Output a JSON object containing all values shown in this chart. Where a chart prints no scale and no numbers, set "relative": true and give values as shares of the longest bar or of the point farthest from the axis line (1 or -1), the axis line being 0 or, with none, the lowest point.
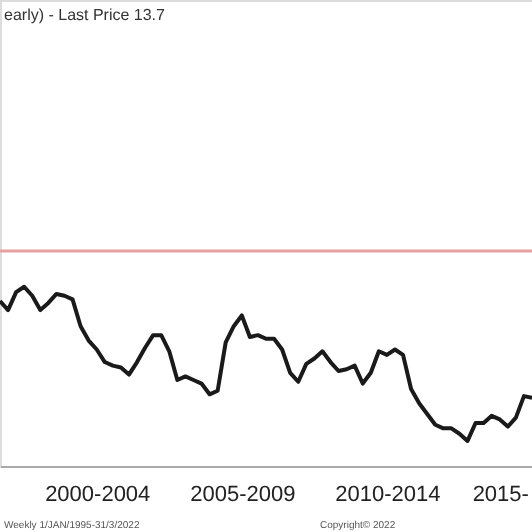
{
  "chart_data": {
    "type": "line",
    "title": "early) - Last Price 13.7",
    "relative": true,
    "categories": [
      null,
      null,
      null,
      null,
      null,
      null,
      null,
      null,
      null,
      null,
      null,
      null,
      "2000-2004",
      null,
      null,
      null,
      null,
      null,
      null,
      null,
      null,
      null,
      null,
      null,
      null,
      null,
      null,
      null,
      null,
      null,
      "2005-2009",
      null,
      null,
      null,
      null,
      null,
      null,
      null,
      null,
      null,
      null,
      null,
      null,
      null,
      null,
      null,
      null,
      null,
      "2010-2014",
      null,
      null,
      null,
      null,
      null,
      null,
      null,
      null,
      null,
      null,
      null,
      null,
      null,
      "2015-",
      null,
      null,
      null,
      null
    ],
    "series": [
      {
        "color": "#1a1a1a",
        "values": [
          0.92,
          0.87,
          0.97,
          1,
          0.95,
          0.87,
          0.91,
          0.96,
          0.95,
          0.93,
          0.78,
          0.7,
          0.65,
          0.58,
          0.56,
          0.55,
          0.51,
          0.58,
          0.66,
          0.73,
          0.73,
          0.64,
          0.48,
          0.5,
          0.48,
          0.46,
          0.4,
          0.42,
          0.69,
          0.78,
          0.84,
          0.72,
          0.73,
          0.71,
          0.71,
          0.65,
          0.52,
          0.47,
          0.57,
          0.6,
          0.64,
          0.58,
          0.53,
          0.54,
          0.56,
          0.46,
          0.52,
          0.64,
          0.62,
          0.65,
          0.62,
          0.43,
          0.35,
          0.29,
          0.23,
          0.21,
          0.21,
          0.18,
          0.14,
          0.24,
          0.24,
          0.28,
          0.26,
          0.22,
          0.27,
          0.39,
          0.38
        ]
      }
    ],
    "ref_lines": [
      {
        "axis": "y",
        "value": 1.2,
        "color": "#e8a0a0"
      }
    ],
    "annotations": [
      "Weekly 1/JAN/1995-31/3/2022",
      "Copyright© 2022"
    ]
  }
}
